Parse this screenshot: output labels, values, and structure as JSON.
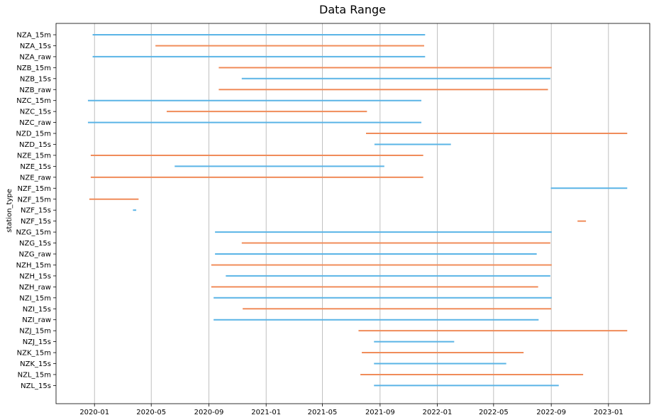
{
  "chart_data": {
    "type": "timeline",
    "title": "Data Range",
    "xlabel": "",
    "ylabel": "station_type",
    "x_ticks": [
      "2020-01",
      "2020-05",
      "2020-09",
      "2021-01",
      "2021-05",
      "2021-09",
      "2022-01",
      "2022-05",
      "2022-09",
      "2023-01"
    ],
    "xlim": [
      "2019-10-11",
      "2023-03-30"
    ],
    "grid": "x",
    "colors": {
      "blue": "#5ab4e6",
      "orange": "#f08c5a"
    },
    "rows": [
      {
        "label": "NZA_15m",
        "color": "blue",
        "segments": [
          [
            "2019-12-28",
            "2021-12-06"
          ]
        ]
      },
      {
        "label": "NZA_15s",
        "color": "orange",
        "segments": [
          [
            "2020-05-10",
            "2021-12-04"
          ]
        ]
      },
      {
        "label": "NZA_raw",
        "color": "blue",
        "segments": [
          [
            "2019-12-28",
            "2021-12-06"
          ]
        ]
      },
      {
        "label": "NZB_15m",
        "color": "orange",
        "segments": [
          [
            "2020-09-22",
            "2022-09-02"
          ]
        ]
      },
      {
        "label": "NZB_15s",
        "color": "blue",
        "segments": [
          [
            "2020-11-10",
            "2022-08-30"
          ]
        ]
      },
      {
        "label": "NZB_raw",
        "color": "orange",
        "segments": [
          [
            "2020-09-22",
            "2022-08-25"
          ]
        ]
      },
      {
        "label": "NZC_15m",
        "color": "blue",
        "segments": [
          [
            "2019-12-18",
            "2021-11-28"
          ]
        ]
      },
      {
        "label": "NZC_15s",
        "color": "orange",
        "segments": [
          [
            "2020-06-03",
            "2021-08-04"
          ]
        ]
      },
      {
        "label": "NZC_raw",
        "color": "blue",
        "segments": [
          [
            "2019-12-18",
            "2021-11-28"
          ]
        ]
      },
      {
        "label": "NZD_15m",
        "color": "orange",
        "segments": [
          [
            "2021-08-02",
            "2023-02-10"
          ]
        ]
      },
      {
        "label": "NZD_15s",
        "color": "blue",
        "segments": [
          [
            "2021-08-20",
            "2022-01-30"
          ]
        ]
      },
      {
        "label": "NZE_15m",
        "color": "orange",
        "segments": [
          [
            "2019-12-24",
            "2021-12-02"
          ]
        ]
      },
      {
        "label": "NZE_15s",
        "color": "blue",
        "segments": [
          [
            "2020-06-20",
            "2021-09-10"
          ]
        ]
      },
      {
        "label": "NZE_raw",
        "color": "orange",
        "segments": [
          [
            "2019-12-24",
            "2021-12-02"
          ]
        ]
      },
      {
        "label": "NZF_15m",
        "color": "blue",
        "segments": [
          [
            "2022-08-31",
            "2023-02-10"
          ]
        ]
      },
      {
        "label": "NZF_15m",
        "color": "orange",
        "segments": [
          [
            "2019-12-21",
            "2020-04-04"
          ]
        ]
      },
      {
        "label": "NZF_15s",
        "color": "blue",
        "segments": [
          [
            "2020-03-23",
            "2020-03-30"
          ]
        ]
      },
      {
        "label": "NZF_15s",
        "color": "orange",
        "segments": [
          [
            "2022-10-27",
            "2022-11-14"
          ]
        ]
      },
      {
        "label": "NZG_15m",
        "color": "blue",
        "segments": [
          [
            "2020-09-14",
            "2022-09-02"
          ]
        ]
      },
      {
        "label": "NZG_15s",
        "color": "orange",
        "segments": [
          [
            "2020-11-10",
            "2022-08-30"
          ]
        ]
      },
      {
        "label": "NZG_raw",
        "color": "blue",
        "segments": [
          [
            "2020-09-14",
            "2022-08-01"
          ]
        ]
      },
      {
        "label": "NZH_15m",
        "color": "orange",
        "segments": [
          [
            "2020-09-06",
            "2022-09-02"
          ]
        ]
      },
      {
        "label": "NZH_15s",
        "color": "blue",
        "segments": [
          [
            "2020-10-07",
            "2022-08-30"
          ]
        ]
      },
      {
        "label": "NZH_raw",
        "color": "orange",
        "segments": [
          [
            "2020-09-06",
            "2022-08-04"
          ]
        ]
      },
      {
        "label": "NZI_15m",
        "color": "blue",
        "segments": [
          [
            "2020-09-11",
            "2022-09-02"
          ]
        ]
      },
      {
        "label": "NZI_15s",
        "color": "orange",
        "segments": [
          [
            "2020-11-12",
            "2022-09-01"
          ]
        ]
      },
      {
        "label": "NZI_raw",
        "color": "blue",
        "segments": [
          [
            "2020-09-11",
            "2022-08-05"
          ]
        ]
      },
      {
        "label": "NZJ_15m",
        "color": "orange",
        "segments": [
          [
            "2021-07-17",
            "2023-02-10"
          ]
        ]
      },
      {
        "label": "NZJ_15s",
        "color": "blue",
        "segments": [
          [
            "2021-08-19",
            "2022-02-06"
          ]
        ]
      },
      {
        "label": "NZK_15m",
        "color": "orange",
        "segments": [
          [
            "2021-07-24",
            "2022-07-04"
          ]
        ]
      },
      {
        "label": "NZK_15s",
        "color": "blue",
        "segments": [
          [
            "2021-08-19",
            "2022-05-28"
          ]
        ]
      },
      {
        "label": "NZL_15m",
        "color": "orange",
        "segments": [
          [
            "2021-07-21",
            "2022-11-08"
          ]
        ]
      },
      {
        "label": "NZL_15s",
        "color": "blue",
        "segments": [
          [
            "2021-08-19",
            "2022-09-17"
          ]
        ]
      }
    ]
  }
}
